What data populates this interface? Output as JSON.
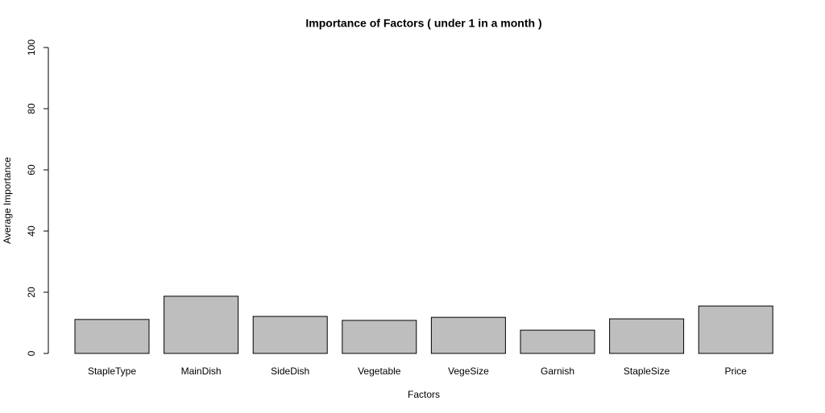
{
  "chart_data": {
    "type": "bar",
    "title": "Importance of Factors ( under 1 in a month )",
    "x_label": "Factors",
    "y_label": "Average Importance",
    "categories": [
      "StapleType",
      "MainDish",
      "SideDish",
      "Vegetable",
      "VegeSize",
      "Garnish",
      "StapleSize",
      "Price"
    ],
    "values": [
      11.1,
      18.7,
      12.1,
      10.8,
      11.8,
      7.6,
      11.3,
      15.5
    ],
    "color": "#bebebe",
    "ylim": [
      0,
      100
    ],
    "yticks": [
      0,
      20,
      40,
      60,
      80,
      100
    ],
    "grid": false
  }
}
